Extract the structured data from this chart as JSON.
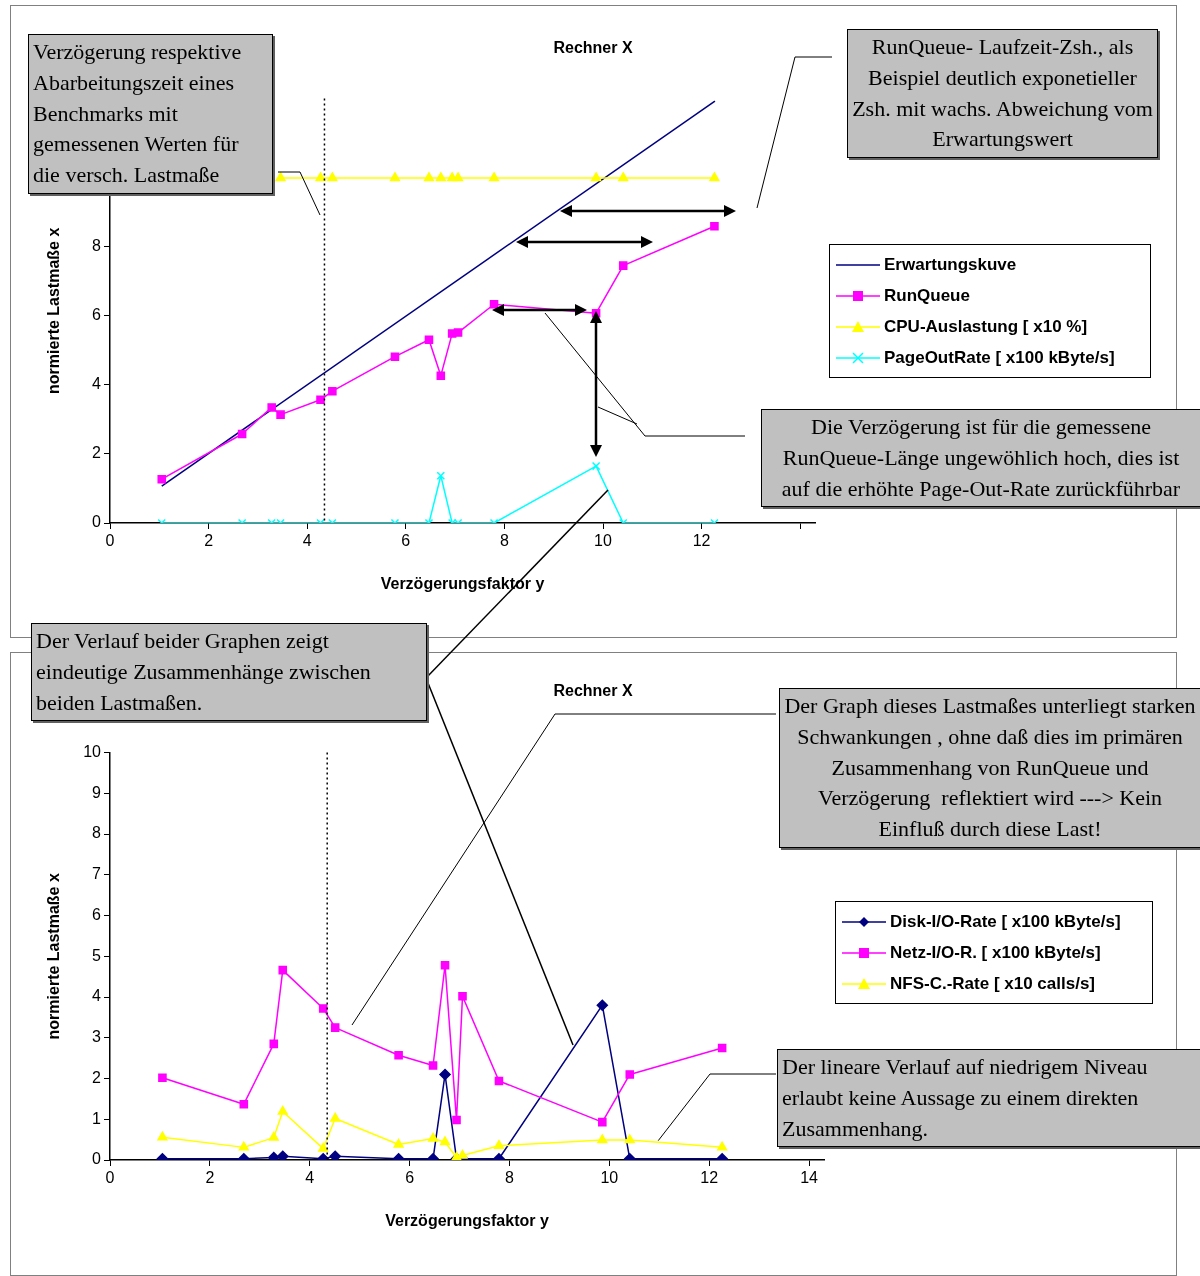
{
  "chart_data": [
    {
      "type": "line",
      "title": "Rechner X",
      "xlabel": "Verzögerungsfaktor y",
      "ylabel": "normierte Lastmaße x",
      "x": [
        1.05,
        2.68,
        3.28,
        3.46,
        4.27,
        4.51,
        5.78,
        6.47,
        6.71,
        6.94,
        7.06,
        7.79,
        9.86,
        10.41,
        12.26
      ],
      "xlim": [
        0,
        14.3
      ],
      "xticks": [
        0,
        2,
        4,
        6,
        8,
        10,
        12,
        {
          "value": 14,
          "label": null
        }
      ],
      "ylim": [
        0,
        12.3
      ],
      "yticks": [
        0,
        2,
        4,
        6,
        8
      ],
      "grid": false,
      "legend": "right",
      "series": [
        {
          "name": "Erwartungskuve",
          "color": "#000080",
          "marker": "none",
          "x": [
            1.05,
            12.27
          ],
          "values": [
            1.07,
            12.23
          ]
        },
        {
          "name": "RunQueue",
          "color": "#ff00ff",
          "marker": "square",
          "values": [
            1.27,
            2.58,
            3.35,
            3.14,
            3.57,
            3.82,
            4.82,
            5.31,
            4.27,
            5.49,
            5.52,
            6.34,
            6.08,
            7.46,
            8.6
          ]
        },
        {
          "name": "CPU-Auslastung [ x10 %]",
          "color": "#ffff00",
          "marker": "triangle",
          "values": [
            null,
            null,
            null,
            10,
            10,
            10,
            10,
            10,
            10,
            10,
            10,
            10,
            10,
            10,
            10
          ]
        },
        {
          "name": "PageOutRate [ x100 kByte/s]",
          "color": "#00ffff",
          "marker": "cross",
          "values": [
            0,
            0,
            0,
            0,
            0,
            0,
            0,
            0,
            1.37,
            0,
            0,
            0,
            1.65,
            0,
            0
          ]
        }
      ],
      "ref_lines": [
        {
          "axis": "x",
          "value": 4.35,
          "color": "#000000",
          "line_style": "dotted"
        }
      ],
      "annotations": [
        "Verzögerung respektive Abarbeitungszeit eines Benchmarks mit gemessenen Werten für die versch. Lastmaße",
        "RunQueue- Laufzeit-Zsh., als Beispiel deutlich exponetieller Zsh. mit wachs. Abweichung vom Erwartungswert",
        "Die Verzögerung ist für die gemessene RunQueue-Länge ungewöhlich hoch, dies ist auf die erhöhte Page-Out-Rate zurückführbar"
      ]
    },
    {
      "type": "line",
      "title": "Rechner X",
      "xlabel": "Verzögerungsfaktor y",
      "ylabel": "normierte Lastmaße x",
      "x": [
        1.05,
        2.68,
        3.28,
        3.46,
        4.27,
        4.51,
        5.78,
        6.47,
        6.71,
        6.94,
        7.06,
        7.79,
        9.86,
        10.41,
        12.26
      ],
      "xlim": [
        0,
        14.3
      ],
      "xticks": [
        0,
        2,
        4,
        6,
        8,
        10,
        12,
        14
      ],
      "ylim": [
        0,
        10
      ],
      "yticks": [
        0,
        1,
        2,
        3,
        4,
        5,
        6,
        7,
        8,
        9,
        10
      ],
      "grid": false,
      "legend": "right",
      "series": [
        {
          "name": "Disk-I/O-Rate [ x100 kByte/s]",
          "color": "#000080",
          "marker": "diamond",
          "values": [
            0.03,
            0.03,
            0.06,
            0.09,
            0.03,
            0.09,
            0.03,
            0.03,
            2.1,
            0.03,
            0.03,
            0.03,
            3.8,
            0.03,
            0.03
          ]
        },
        {
          "name": "Netz-I/O-R. [ x100 kByte/s]",
          "color": "#ff00ff",
          "marker": "square",
          "values": [
            2.02,
            1.37,
            2.85,
            4.66,
            3.72,
            3.25,
            2.57,
            2.32,
            4.78,
            0.98,
            4.02,
            1.94,
            0.93,
            2.1,
            2.75
          ]
        },
        {
          "name": "NFS-C.-Rate [ x10 calls/s]",
          "color": "#ffff00",
          "marker": "triangle",
          "values": [
            0.56,
            0.31,
            0.55,
            1.19,
            0.28,
            1.02,
            0.38,
            0.53,
            0.44,
            0.06,
            0.11,
            0.35,
            0.49,
            0.49,
            0.31
          ]
        }
      ],
      "ref_lines": [
        {
          "axis": "x",
          "value": 4.35,
          "color": "#000000",
          "line_style": "dotted"
        }
      ],
      "annotations": [
        "Der Verlauf beider Graphen zeigt eindeutige Zusammenhänge zwischen beiden Lastmaßen.",
        "Der Graph dieses Lastmaßes unterliegt starken Schwankungen , ohne daß dies im primären Zusammenhang von RunQueue und Verzögerung  reflektiert wird ---> Kein Einfluß durch diese Last!",
        {
          "text": "Der lineare Verlauf auf niedrigem Niveau erlaubt keine Aussage zu einem direkten Zusammenhang.",
          "x": 11,
          "y": 0.45
        }
      ]
    }
  ]
}
